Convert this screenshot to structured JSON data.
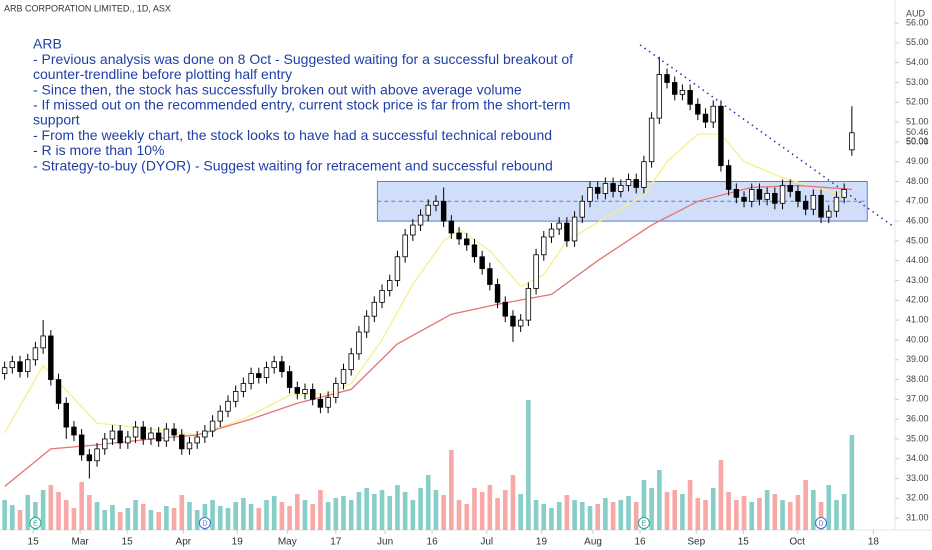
{
  "chart_data": {
    "type": "candlestick",
    "title": "ARB CORPORATION LIMITED., 1D, ASX",
    "currency": "AUD",
    "annotations": [
      "ARB",
      "- Previous analysis was done on 8 Oct - Suggested waiting for a successful breakout of",
      "counter-trendline before plotting half entry",
      "- Since then, the stock has successfully broken out with above average volume",
      "- If missed out on the recommended entry, current stock price is far from the short-term",
      "support",
      "- From the weekly chart, the stock looks to have had a successful technical rebound",
      "- R is more than 10%",
      "- Strategy-to-buy (DYOR) - Suggest waiting for retracement and successful rebound"
    ],
    "open": [
      38.3,
      38.6,
      38.9,
      38.4,
      39.0,
      39.6,
      40.2,
      38.0,
      36.8,
      35.6,
      35.2,
      34.2,
      33.9,
      34.5,
      35.0,
      35.4,
      34.8,
      35.1,
      35.6,
      35.0,
      35.3,
      34.9,
      35.5,
      35.2,
      34.5,
      34.8,
      35.1,
      35.4,
      35.9,
      36.4,
      36.9,
      37.4,
      37.8,
      38.3,
      38.1,
      38.6,
      38.9,
      38.4,
      37.6,
      37.3,
      37.5,
      37.0,
      36.6,
      37.1,
      37.8,
      38.5,
      39.3,
      40.4,
      41.2,
      41.9,
      42.5,
      43.0,
      44.2,
      45.3,
      45.8,
      46.3,
      46.8,
      47.0,
      46.0,
      45.4,
      45.1,
      44.8,
      44.2,
      43.6,
      42.8,
      41.9,
      41.2,
      40.7,
      41.0,
      42.6,
      44.3,
      45.2,
      45.6,
      45.9,
      45.0,
      46.2,
      47.0,
      47.7,
      47.4,
      47.9,
      47.5,
      47.8,
      48.1,
      47.7,
      49.0,
      51.2,
      53.4,
      53.0,
      52.4,
      52.6,
      51.9,
      51.4,
      51.0,
      51.8,
      48.8,
      47.6,
      47.2,
      47.0,
      47.6,
      47.1,
      47.4,
      46.9,
      47.8,
      47.5,
      47.0,
      46.6,
      47.3,
      46.2,
      46.5,
      47.2,
      49.6
    ],
    "high": [
      38.9,
      39.2,
      39.2,
      39.3,
      39.9,
      41.0,
      40.5,
      38.3,
      37.1,
      35.9,
      35.5,
      34.5,
      34.8,
      35.3,
      35.7,
      35.7,
      35.4,
      35.9,
      35.9,
      35.6,
      35.6,
      35.8,
      35.8,
      35.5,
      35.1,
      35.4,
      35.7,
      36.2,
      36.7,
      37.2,
      37.7,
      38.1,
      38.6,
      38.6,
      38.9,
      39.2,
      39.2,
      38.7,
      37.9,
      37.8,
      37.8,
      37.3,
      37.4,
      38.1,
      38.8,
      39.6,
      40.7,
      41.5,
      42.2,
      42.8,
      43.3,
      44.5,
      45.6,
      46.1,
      46.6,
      47.1,
      47.3,
      47.7,
      46.3,
      45.7,
      45.4,
      45.1,
      44.5,
      43.9,
      43.1,
      42.2,
      41.5,
      41.3,
      42.9,
      44.6,
      45.5,
      45.9,
      46.2,
      46.2,
      46.5,
      47.3,
      48.0,
      48.0,
      48.2,
      48.2,
      48.1,
      48.4,
      48.4,
      49.3,
      51.5,
      54.3,
      53.7,
      53.3,
      52.9,
      52.9,
      52.2,
      51.7,
      52.1,
      52.1,
      49.1,
      47.9,
      47.5,
      47.9,
      47.9,
      47.7,
      47.7,
      48.1,
      48.1,
      47.8,
      47.3,
      47.6,
      47.6,
      46.8,
      47.5,
      47.9,
      51.8
    ],
    "low": [
      38.0,
      38.3,
      38.1,
      38.1,
      38.7,
      39.3,
      37.7,
      36.5,
      35.0,
      34.9,
      33.9,
      33.0,
      33.6,
      34.2,
      34.7,
      34.5,
      34.5,
      34.8,
      34.7,
      34.7,
      34.6,
      34.6,
      34.9,
      34.2,
      34.2,
      34.5,
      34.8,
      35.1,
      35.6,
      36.1,
      36.6,
      37.1,
      37.5,
      37.8,
      37.8,
      38.3,
      38.1,
      37.3,
      37.0,
      37.0,
      36.7,
      36.3,
      36.3,
      36.8,
      37.5,
      38.2,
      39.0,
      40.1,
      40.9,
      41.6,
      42.2,
      42.7,
      43.9,
      45.0,
      45.5,
      46.0,
      46.5,
      45.7,
      45.1,
      44.8,
      44.5,
      43.9,
      43.3,
      42.5,
      41.6,
      40.9,
      39.9,
      40.4,
      40.7,
      42.3,
      44.0,
      44.9,
      45.3,
      44.7,
      44.7,
      45.9,
      46.7,
      47.1,
      47.1,
      47.2,
      47.2,
      47.5,
      47.4,
      47.4,
      48.7,
      50.9,
      52.7,
      52.1,
      52.1,
      51.6,
      51.1,
      50.7,
      50.7,
      48.5,
      47.3,
      46.9,
      46.7,
      46.7,
      46.8,
      46.8,
      46.6,
      46.6,
      47.2,
      46.7,
      46.3,
      46.3,
      45.9,
      45.9,
      46.2,
      46.9,
      49.3
    ],
    "close": [
      38.6,
      38.9,
      38.4,
      39.0,
      39.6,
      40.2,
      38.0,
      36.8,
      35.6,
      35.2,
      34.2,
      33.9,
      34.5,
      35.0,
      35.4,
      34.8,
      35.1,
      35.6,
      35.0,
      35.3,
      34.9,
      35.5,
      35.2,
      34.5,
      34.8,
      35.1,
      35.4,
      35.9,
      36.4,
      36.9,
      37.4,
      37.8,
      38.3,
      38.1,
      38.6,
      38.9,
      38.4,
      37.6,
      37.3,
      37.5,
      37.0,
      36.6,
      37.1,
      37.8,
      38.5,
      39.3,
      40.4,
      41.2,
      41.9,
      42.5,
      43.0,
      44.2,
      45.3,
      45.8,
      46.3,
      46.8,
      47.0,
      46.0,
      45.4,
      45.1,
      44.8,
      44.2,
      43.6,
      42.8,
      41.9,
      41.2,
      40.7,
      41.0,
      42.6,
      44.3,
      45.2,
      45.6,
      45.9,
      45.0,
      46.2,
      47.0,
      47.7,
      47.4,
      47.9,
      47.5,
      47.8,
      48.1,
      47.7,
      49.0,
      51.2,
      53.4,
      53.0,
      52.4,
      52.6,
      51.9,
      51.4,
      51.0,
      51.8,
      48.8,
      47.6,
      47.2,
      47.0,
      47.6,
      47.1,
      47.4,
      46.9,
      47.8,
      47.5,
      47.0,
      46.6,
      47.3,
      46.2,
      46.5,
      47.2,
      47.6,
      50.46
    ],
    "volume": [
      30,
      25,
      20,
      35,
      28,
      40,
      45,
      38,
      30,
      22,
      48,
      35,
      28,
      20,
      25,
      18,
      22,
      30,
      26,
      20,
      18,
      24,
      22,
      35,
      28,
      20,
      26,
      30,
      24,
      22,
      28,
      32,
      26,
      22,
      30,
      34,
      28,
      24,
      36,
      30,
      26,
      40,
      28,
      32,
      34,
      30,
      38,
      42,
      36,
      40,
      34,
      45,
      38,
      30,
      42,
      55,
      40,
      35,
      80,
      30,
      26,
      42,
      38,
      45,
      32,
      40,
      55,
      36,
      130,
      30,
      26,
      22,
      28,
      35,
      30,
      28,
      24,
      26,
      32,
      28,
      30,
      34,
      28,
      50,
      42,
      60,
      38,
      40,
      36,
      50,
      32,
      30,
      42,
      70,
      38,
      30,
      34,
      28,
      32,
      40,
      36,
      30,
      28,
      35,
      50,
      40,
      28,
      45,
      30,
      36,
      95
    ],
    "up_color": "#ffffff",
    "down_color": "#000000",
    "wick_color": "#000000",
    "volume_up_color": "rgba(38,166,154,0.55)",
    "volume_down_color": "rgba(239,83,80,0.5)",
    "vlim": [
      0,
      150
    ],
    "moving_averages": [
      {
        "color": "#f5f08a",
        "x": [
          0,
          5,
          12,
          19,
          25,
          31,
          37,
          42,
          45,
          49,
          53,
          57,
          59,
          63,
          67,
          70,
          73,
          79,
          83,
          86,
          90,
          93,
          96,
          101,
          106,
          110
        ],
        "values": [
          35.3,
          38.7,
          35.8,
          35.5,
          35.2,
          36.0,
          37.2,
          37.3,
          37.8,
          40.0,
          42.8,
          45.0,
          45.6,
          44.5,
          42.7,
          43.3,
          45.0,
          46.4,
          47.3,
          49.0,
          50.4,
          50.4,
          49.0,
          48.2,
          47.6,
          47.2
        ]
      },
      {
        "color": "#e57373",
        "x": [
          0,
          6,
          12,
          19,
          25,
          32,
          38,
          45,
          51,
          58,
          64,
          71,
          77,
          84,
          90,
          97,
          103,
          110
        ],
        "values": [
          32.6,
          34.5,
          34.7,
          35.0,
          35.2,
          36.0,
          36.8,
          37.5,
          39.8,
          41.3,
          41.8,
          42.3,
          44.0,
          45.8,
          47.0,
          47.7,
          47.8,
          47.6
        ]
      }
    ],
    "zone": {
      "x": [
        48.4,
        112
      ],
      "values": [
        46,
        48
      ],
      "mid": 47,
      "color": "rgba(120,160,240,0.35)"
    },
    "trendline": {
      "x": [
        82.5,
        115.5
      ],
      "values": [
        54.9,
        45.7
      ],
      "color": "#2b3ab0"
    },
    "events": [
      {
        "x": 4,
        "label": "E",
        "color": "#26a69a"
      },
      {
        "x": 26,
        "label": "D",
        "color": "#3f6fd8"
      },
      {
        "x": 83,
        "label": "E",
        "color": "#26a69a"
      },
      {
        "x": 106,
        "label": "D",
        "color": "#3f6fd8"
      }
    ],
    "price_labels": [
      50.46,
      50.01
    ],
    "xlim": [
      -0.6,
      115.6
    ],
    "ylim": [
      30.15,
      56.66
    ],
    "xticks": [
      {
        "value": 3.7,
        "label": "15"
      },
      {
        "value": 9.8,
        "label": "Mar"
      },
      {
        "value": 15.9,
        "label": "15"
      },
      {
        "value": 23.2,
        "label": "Apr"
      },
      {
        "value": 30.2,
        "label": "19"
      },
      {
        "value": 36.7,
        "label": "May"
      },
      {
        "value": 43.0,
        "label": "17"
      },
      {
        "value": 49.4,
        "label": "Jun"
      },
      {
        "value": 55.5,
        "label": "16"
      },
      {
        "value": 62.6,
        "label": "Jul"
      },
      {
        "value": 69.7,
        "label": "19"
      },
      {
        "value": 76.4,
        "label": "Aug"
      },
      {
        "value": 82.5,
        "label": "16"
      },
      {
        "value": 89.8,
        "label": "Sep"
      },
      {
        "value": 95.9,
        "label": "15"
      },
      {
        "value": 102.9,
        "label": "Oct"
      },
      {
        "value": 112.8,
        "label": "18"
      }
    ],
    "yticks": [
      {
        "value": 31,
        "label": "31.00"
      },
      {
        "value": 32,
        "label": "32.00"
      },
      {
        "value": 33,
        "label": "33.00"
      },
      {
        "value": 34,
        "label": "34.00"
      },
      {
        "value": 35,
        "label": "35.00"
      },
      {
        "value": 36,
        "label": "36.00"
      },
      {
        "value": 37,
        "label": "37.00"
      },
      {
        "value": 38,
        "label": "38.00"
      },
      {
        "value": 39,
        "label": "39.00"
      },
      {
        "value": 40,
        "label": "40.00"
      },
      {
        "value": 41,
        "label": "41.00"
      },
      {
        "value": 42,
        "label": "42.00"
      },
      {
        "value": 43,
        "label": "43.00"
      },
      {
        "value": 44,
        "label": "44.00"
      },
      {
        "value": 45,
        "label": "45.00"
      },
      {
        "value": 46,
        "label": "46.00"
      },
      {
        "value": 47,
        "label": "47.00"
      },
      {
        "value": 48,
        "label": "48.00"
      },
      {
        "value": 49,
        "label": "49.00"
      },
      {
        "value": 50,
        "label": "50.00"
      },
      {
        "value": 51,
        "label": "51.00"
      },
      {
        "value": 52,
        "label": "52.00"
      },
      {
        "value": 53,
        "label": "53.00"
      },
      {
        "value": 54,
        "label": "54.00"
      },
      {
        "value": 55,
        "label": "55.00"
      },
      {
        "value": 56,
        "label": "56.00"
      }
    ],
    "grid": false
  }
}
